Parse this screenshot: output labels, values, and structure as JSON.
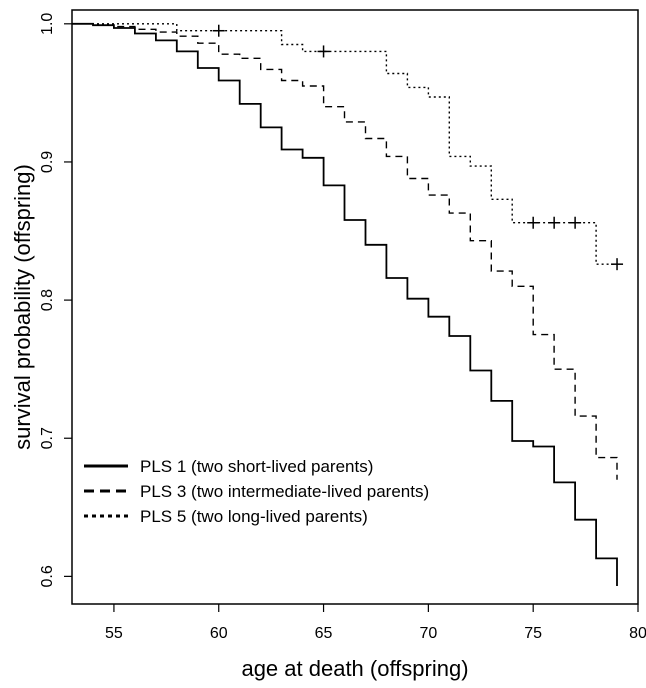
{
  "chart_data": {
    "type": "line",
    "subtype": "kaplan-meier step curves",
    "xlabel": "age at death (offspring)",
    "ylabel": "survival probability (offspring)",
    "xlim": [
      53,
      80
    ],
    "ylim": [
      0.58,
      1.01
    ],
    "xticks": [
      55,
      60,
      65,
      70,
      75,
      80
    ],
    "yticks": [
      0.6,
      0.7,
      0.8,
      0.9,
      1.0
    ],
    "xtick_labels": [
      "55",
      "60",
      "65",
      "70",
      "75",
      "80"
    ],
    "ytick_labels": [
      "0.6",
      "0.7",
      "0.8",
      "0.9",
      "1.0"
    ],
    "grid": false,
    "legend_position": "bottom-left",
    "series": [
      {
        "name": "PLS 1 (two short-lived parents)",
        "linestyle": "solid",
        "color": "#000000",
        "x": [
          53,
          54,
          55,
          56,
          57,
          58,
          59,
          60,
          61,
          62,
          63,
          64,
          65,
          66,
          67,
          68,
          69,
          70,
          71,
          72,
          73,
          74,
          75,
          76,
          77,
          78,
          79
        ],
        "y": [
          1.0,
          0.999,
          0.997,
          0.993,
          0.988,
          0.98,
          0.968,
          0.959,
          0.942,
          0.925,
          0.909,
          0.903,
          0.883,
          0.858,
          0.84,
          0.816,
          0.801,
          0.788,
          0.774,
          0.749,
          0.727,
          0.698,
          0.694,
          0.668,
          0.641,
          0.613,
          0.593
        ],
        "censored": []
      },
      {
        "name": "PLS 3 (two intermediate-lived parents)",
        "linestyle": "dashed",
        "color": "#000000",
        "x": [
          53,
          54,
          55,
          56,
          57,
          58,
          59,
          60,
          61,
          62,
          63,
          64,
          65,
          66,
          67,
          68,
          69,
          70,
          71,
          72,
          73,
          74,
          75,
          76,
          77,
          78,
          79
        ],
        "y": [
          1.0,
          0.999,
          0.998,
          0.996,
          0.994,
          0.991,
          0.986,
          0.978,
          0.975,
          0.967,
          0.959,
          0.955,
          0.94,
          0.929,
          0.917,
          0.904,
          0.888,
          0.876,
          0.863,
          0.843,
          0.821,
          0.81,
          0.775,
          0.75,
          0.716,
          0.686,
          0.67
        ],
        "censored": []
      },
      {
        "name": "PLS 5 (two long-lived parents)",
        "linestyle": "dotted",
        "color": "#000000",
        "x": [
          53,
          55,
          58,
          63,
          64,
          68,
          69,
          70,
          71,
          72,
          73,
          74,
          78,
          79
        ],
        "y": [
          1.0,
          1.0,
          0.995,
          0.985,
          0.98,
          0.964,
          0.954,
          0.947,
          0.904,
          0.897,
          0.873,
          0.856,
          0.826,
          0.826
        ],
        "censored": [
          [
            60,
            0.995
          ],
          [
            65,
            0.98
          ],
          [
            75,
            0.856
          ],
          [
            76,
            0.856
          ],
          [
            77,
            0.856
          ],
          [
            79,
            0.826
          ]
        ]
      }
    ]
  }
}
